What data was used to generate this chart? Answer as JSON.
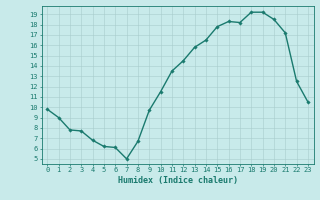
{
  "x": [
    0,
    1,
    2,
    3,
    4,
    5,
    6,
    7,
    8,
    9,
    10,
    11,
    12,
    13,
    14,
    15,
    16,
    17,
    18,
    19,
    20,
    21,
    22,
    23
  ],
  "y": [
    9.8,
    9.0,
    7.8,
    7.7,
    6.8,
    6.2,
    6.1,
    5.0,
    6.7,
    9.7,
    11.5,
    13.5,
    14.5,
    15.8,
    16.5,
    17.8,
    18.3,
    18.2,
    19.2,
    19.2,
    18.5,
    17.2,
    12.5,
    10.5
  ],
  "line_color": "#1a7a6e",
  "marker": "D",
  "marker_size": 1.8,
  "bg_color": "#c8eaea",
  "grid_color": "#a8cccc",
  "xlabel": "Humidex (Indice chaleur)",
  "ylim": [
    4.5,
    19.8
  ],
  "xlim": [
    -0.5,
    23.5
  ],
  "yticks": [
    5,
    6,
    7,
    8,
    9,
    10,
    11,
    12,
    13,
    14,
    15,
    16,
    17,
    18,
    19
  ],
  "xticks": [
    0,
    1,
    2,
    3,
    4,
    5,
    6,
    7,
    8,
    9,
    10,
    11,
    12,
    13,
    14,
    15,
    16,
    17,
    18,
    19,
    20,
    21,
    22,
    23
  ],
  "tick_label_size": 5.0,
  "xlabel_size": 6.0,
  "line_width": 1.0
}
